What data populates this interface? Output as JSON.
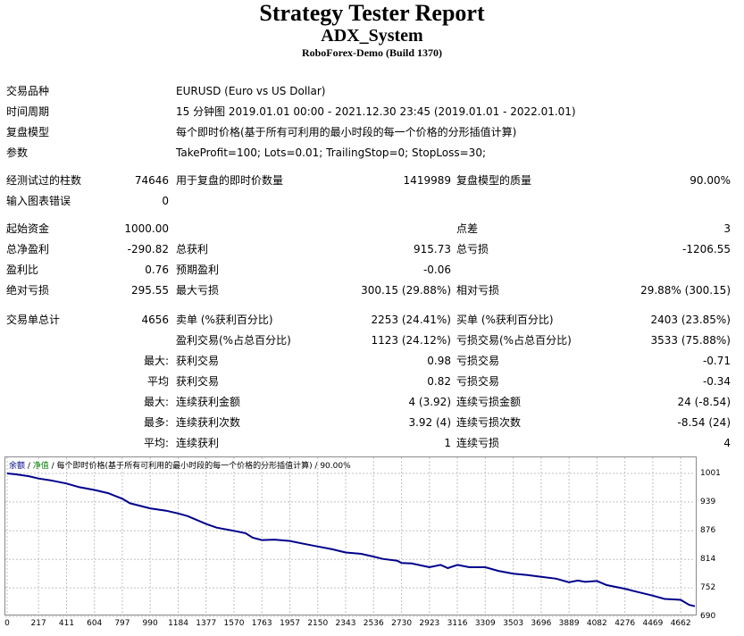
{
  "header": {
    "title": "Strategy Tester Report",
    "expert": "ADX_System",
    "server": "RoboForex-Demo (Build 1370)"
  },
  "info": {
    "symbol_label": "交易品种",
    "symbol_value": "EURUSD (Euro vs US Dollar)",
    "period_label": "时间周期",
    "period_value": "15 分钟图 2019.01.01 00:00 - 2021.12.30 23:45 (2019.01.01 - 2022.01.01)",
    "model_label": "复盘模型",
    "model_value": "每个即时价格(基于所有可利用的最小时段的每一个价格的分形插值计算)",
    "params_label": "参数",
    "params_value": "TakeProfit=100; Lots=0.01; TrailingStop=0; StopLoss=30;"
  },
  "stats": {
    "bars_label": "经测试过的柱数",
    "bars_value": "74646",
    "ticks_label": "用于复盘的即时价数量",
    "ticks_value": "1419989",
    "quality_label": "复盘模型的质量",
    "quality_value": "90.00%",
    "errors_label": "输入图表错误",
    "errors_value": "0",
    "deposit_label": "起始资金",
    "deposit_value": "1000.00",
    "spread_label": "点差",
    "spread_value": "3",
    "net_label": "总净盈利",
    "net_value": "-290.82",
    "gross_profit_label": "总获利",
    "gross_profit_value": "915.73",
    "gross_loss_label": "总亏损",
    "gross_loss_value": "-1206.55",
    "pf_label": "盈利比",
    "pf_value": "0.76",
    "payoff_label": "预期盈利",
    "payoff_value": "-0.06",
    "abs_dd_label": "绝对亏损",
    "abs_dd_value": "295.55",
    "max_dd_label": "最大亏损",
    "max_dd_value": "300.15 (29.88%)",
    "rel_dd_label": "相对亏损",
    "rel_dd_value": "29.88% (300.15)",
    "trades_label": "交易单总计",
    "trades_value": "4656",
    "short_label": "卖单 (%获利百分比)",
    "short_value": "2253 (24.41%)",
    "long_label": "买单 (%获利百分比)",
    "long_value": "2403 (23.85%)",
    "profit_trades_label": "盈利交易(%占总百分比)",
    "profit_trades_value": "1123 (24.12%)",
    "loss_trades_label": "亏损交易(%占总百分比)",
    "loss_trades_value": "3533 (75.88%)",
    "largest_label": "最大:",
    "largest_win_label": "获利交易",
    "largest_win_value": "0.98",
    "largest_loss_label": "亏损交易",
    "largest_loss_value": "-0.71",
    "average_label": "平均",
    "avg_win_label": "获利交易",
    "avg_win_value": "0.82",
    "avg_loss_label": "亏损交易",
    "avg_loss_value": "-0.34",
    "max_label": "最大:",
    "max_cons_win_label": "连续获利金额",
    "max_cons_win_value": "4 (3.92)",
    "max_cons_loss_label": "连续亏损金额",
    "max_cons_loss_value": "24 (-8.54)",
    "most_label": "最多:",
    "most_cons_win_label": "连续获利次数",
    "most_cons_win_value": "3.92 (4)",
    "most_cons_loss_label": "连续亏损次数",
    "most_cons_loss_value": "-8.54 (24)",
    "avg2_label": "平均:",
    "avg_cons_win_label": "连续获利",
    "avg_cons_win_value": "1",
    "avg_cons_loss_label": "连续亏损",
    "avg_cons_loss_value": "4"
  },
  "chart_header": {
    "equity": "余额",
    "sep1": " / ",
    "balance": "净值",
    "rest": " / 每个即时价格(基于所有可利用的最小时段的每一个价格的分形插值计算) / 90.00%"
  },
  "colors": {
    "balance_line": "#00008b",
    "grid": "#c0c0c0",
    "frame": "#8a8a8a"
  },
  "chart_data": {
    "type": "line",
    "title": "",
    "xlabel": "",
    "ylabel": "",
    "x_ticks": [
      "0",
      "217",
      "411",
      "604",
      "797",
      "990",
      "1184",
      "1377",
      "1570",
      "1763",
      "1957",
      "2150",
      "2343",
      "2536",
      "2730",
      "2923",
      "3116",
      "3309",
      "3503",
      "3696",
      "3889",
      "4082",
      "4276",
      "4469",
      "4662"
    ],
    "y_ticks": [
      "1001",
      "939",
      "876",
      "814",
      "752",
      "690"
    ],
    "ylim": [
      690,
      1001
    ],
    "xlim": [
      0,
      4760
    ],
    "grid": true,
    "series": [
      {
        "x": [
          0,
          60,
          150,
          217,
          300,
          411,
          500,
          604,
          700,
          797,
          850,
          990,
          1100,
          1184,
          1250,
          1377,
          1450,
          1570,
          1650,
          1700,
          1763,
          1850,
          1957,
          2050,
          2150,
          2250,
          2343,
          2450,
          2536,
          2600,
          2700,
          2730,
          2800,
          2923,
          3000,
          3050,
          3116,
          3200,
          3309,
          3400,
          3503,
          3600,
          3696,
          3800,
          3889,
          3950,
          4000,
          4082,
          4150,
          4276,
          4350,
          4469,
          4550,
          4662,
          4720,
          4760
        ],
        "values": [
          1001,
          999,
          995,
          990,
          986,
          979,
          971,
          965,
          958,
          946,
          936,
          925,
          920,
          914,
          908,
          891,
          883,
          876,
          871,
          861,
          856,
          857,
          854,
          848,
          842,
          836,
          829,
          826,
          820,
          815,
          811,
          806,
          805,
          797,
          802,
          795,
          802,
          797,
          797,
          789,
          783,
          780,
          776,
          772,
          764,
          768,
          765,
          767,
          758,
          750,
          744,
          735,
          728,
          726,
          715,
          712
        ]
      }
    ]
  }
}
